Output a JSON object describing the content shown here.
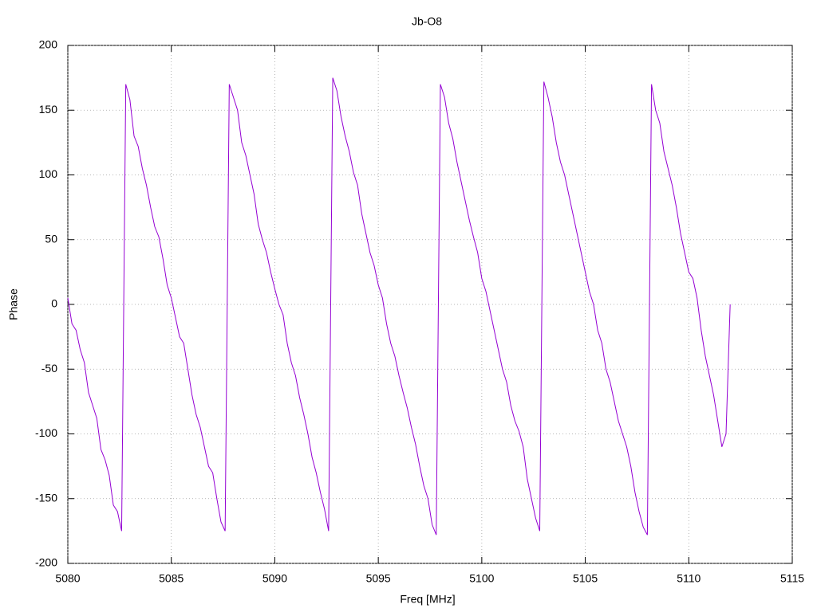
{
  "chart_data": {
    "type": "line",
    "title": "Jb-O8",
    "x_label": "Freq [MHz]",
    "y_label": "Phase",
    "x": [
      5080,
      5080.2,
      5080.4,
      5080.6,
      5080.8,
      5081,
      5081.2,
      5081.4,
      5081.6,
      5081.8,
      5082,
      5082.2,
      5082.4,
      5082.6,
      5082.8,
      5083,
      5083.2,
      5083.4,
      5083.6,
      5083.8,
      5084,
      5084.2,
      5084.4,
      5084.6,
      5084.8,
      5085,
      5085.2,
      5085.4,
      5085.6,
      5085.8,
      5086,
      5086.2,
      5086.4,
      5086.6,
      5086.8,
      5087,
      5087.2,
      5087.4,
      5087.6,
      5087.8,
      5088,
      5088.2,
      5088.4,
      5088.6,
      5088.8,
      5089,
      5089.2,
      5089.4,
      5089.6,
      5089.8,
      5090,
      5090.2,
      5090.4,
      5090.6,
      5090.8,
      5091,
      5091.2,
      5091.4,
      5091.6,
      5091.8,
      5092,
      5092.2,
      5092.4,
      5092.6,
      5092.8,
      5093,
      5093.2,
      5093.4,
      5093.6,
      5093.8,
      5094,
      5094.2,
      5094.4,
      5094.6,
      5094.8,
      5095,
      5095.2,
      5095.4,
      5095.6,
      5095.8,
      5096,
      5096.2,
      5096.4,
      5096.6,
      5096.8,
      5097,
      5097.2,
      5097.4,
      5097.6,
      5097.8,
      5098,
      5098.2,
      5098.4,
      5098.6,
      5098.8,
      5099,
      5099.2,
      5099.4,
      5099.6,
      5099.8,
      5100,
      5100.2,
      5100.4,
      5100.6,
      5100.8,
      5101,
      5101.2,
      5101.4,
      5101.6,
      5101.8,
      5102,
      5102.2,
      5102.4,
      5102.6,
      5102.8,
      5103,
      5103.2,
      5103.4,
      5103.6,
      5103.8,
      5104,
      5104.2,
      5104.4,
      5104.6,
      5104.8,
      5105,
      5105.2,
      5105.4,
      5105.6,
      5105.8,
      5106,
      5106.2,
      5106.4,
      5106.6,
      5106.8,
      5107,
      5107.2,
      5107.4,
      5107.6,
      5107.8,
      5108,
      5108.2,
      5108.4,
      5108.6,
      5108.8,
      5109,
      5109.2,
      5109.4,
      5109.6,
      5109.8,
      5110,
      5110.2,
      5110.4,
      5110.6,
      5110.8,
      5111,
      5111.2,
      5111.4,
      5111.6,
      5111.8,
      5112
    ],
    "series": [
      {
        "name": "Phase",
        "color": "#9400d3",
        "values": [
          5,
          -15,
          -20,
          -35,
          -45,
          -68,
          -78,
          -88,
          -112,
          -120,
          -132,
          -155,
          -160,
          -175,
          170,
          158,
          130,
          122,
          105,
          92,
          75,
          60,
          52,
          35,
          15,
          5,
          -10,
          -25,
          -30,
          -50,
          -70,
          -85,
          -95,
          -110,
          -125,
          -130,
          -150,
          -168,
          -175,
          170,
          160,
          150,
          125,
          115,
          100,
          85,
          62,
          50,
          40,
          25,
          12,
          0,
          -8,
          -30,
          -45,
          -55,
          -72,
          -85,
          -100,
          -118,
          -130,
          -145,
          -158,
          -175,
          175,
          165,
          145,
          130,
          118,
          102,
          92,
          70,
          55,
          40,
          30,
          15,
          5,
          -15,
          -30,
          -40,
          -55,
          -68,
          -80,
          -95,
          -108,
          -125,
          -140,
          -150,
          -170,
          -178,
          170,
          160,
          140,
          128,
          110,
          95,
          80,
          65,
          52,
          40,
          20,
          10,
          -5,
          -20,
          -35,
          -50,
          -60,
          -78,
          -90,
          -98,
          -110,
          -135,
          -150,
          -165,
          -175,
          172,
          160,
          145,
          125,
          110,
          100,
          85,
          70,
          55,
          40,
          25,
          10,
          0,
          -20,
          -30,
          -50,
          -60,
          -75,
          -90,
          -100,
          -110,
          -125,
          -145,
          -160,
          -172,
          -178,
          170,
          150,
          140,
          118,
          105,
          92,
          75,
          55,
          40,
          25,
          20,
          5,
          -20,
          -40,
          -55,
          -70,
          -90,
          -110,
          -100,
          0
        ]
      }
    ],
    "xlim": [
      5080,
      5115
    ],
    "ylim": [
      -200,
      200
    ],
    "xticks": [
      5080,
      5085,
      5090,
      5095,
      5100,
      5105,
      5110,
      5115
    ],
    "yticks": [
      -200,
      -150,
      -100,
      -50,
      0,
      50,
      100,
      150,
      200
    ],
    "grid": true
  }
}
